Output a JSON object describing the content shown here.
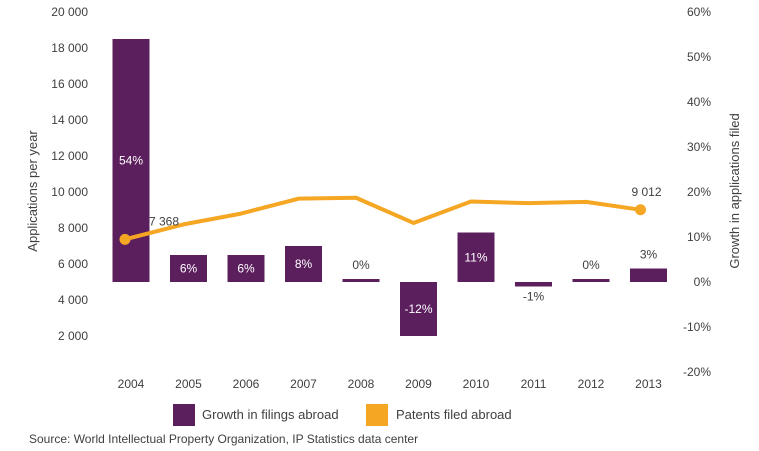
{
  "chart_data": {
    "type": "bar+line",
    "categories": [
      "2004",
      "2005",
      "2006",
      "2007",
      "2008",
      "2009",
      "2010",
      "2011",
      "2012",
      "2013"
    ],
    "series": [
      {
        "name": "Growth in filings abroad",
        "type": "bar",
        "axis": "right",
        "unit": "%",
        "values": [
          54,
          6,
          6,
          8,
          0,
          -12,
          11,
          -1,
          0,
          3
        ],
        "labels": [
          "54%",
          "6%",
          "6%",
          "8%",
          "0%",
          "-12%",
          "11%",
          "-1%",
          "0%",
          "3%"
        ],
        "color": "#5c1f5e"
      },
      {
        "name": "Patents filed abroad",
        "type": "line",
        "axis": "left",
        "values": [
          7368,
          8200,
          8800,
          9630,
          9680,
          8280,
          9470,
          9380,
          9450,
          9012
        ],
        "color": "#f5a623"
      }
    ],
    "point_labels": [
      {
        "index": 0,
        "text": "7 368"
      },
      {
        "index": 9,
        "text": "9 012"
      }
    ],
    "ylabel": "Applications per year",
    "ylabel_right": "Growth in applications filed",
    "ylim": [
      0,
      20000
    ],
    "ylim_right": [
      -20,
      60
    ],
    "yticks_left": [
      "2 000",
      "4 000",
      "6 000",
      "8 000",
      "10 000",
      "12 000",
      "14 000",
      "16 000",
      "18 000",
      "20 000"
    ],
    "yticks_right": [
      "-20%",
      "-10%",
      "0%",
      "10%",
      "20%",
      "30%",
      "40%",
      "50%",
      "60%"
    ],
    "legend": [
      "Growth in filings abroad",
      "Patents filed abroad"
    ],
    "legend_placement": "bottom",
    "grid": false
  },
  "source": "Source: World Intellectual Property Organization, IP Statistics data center"
}
